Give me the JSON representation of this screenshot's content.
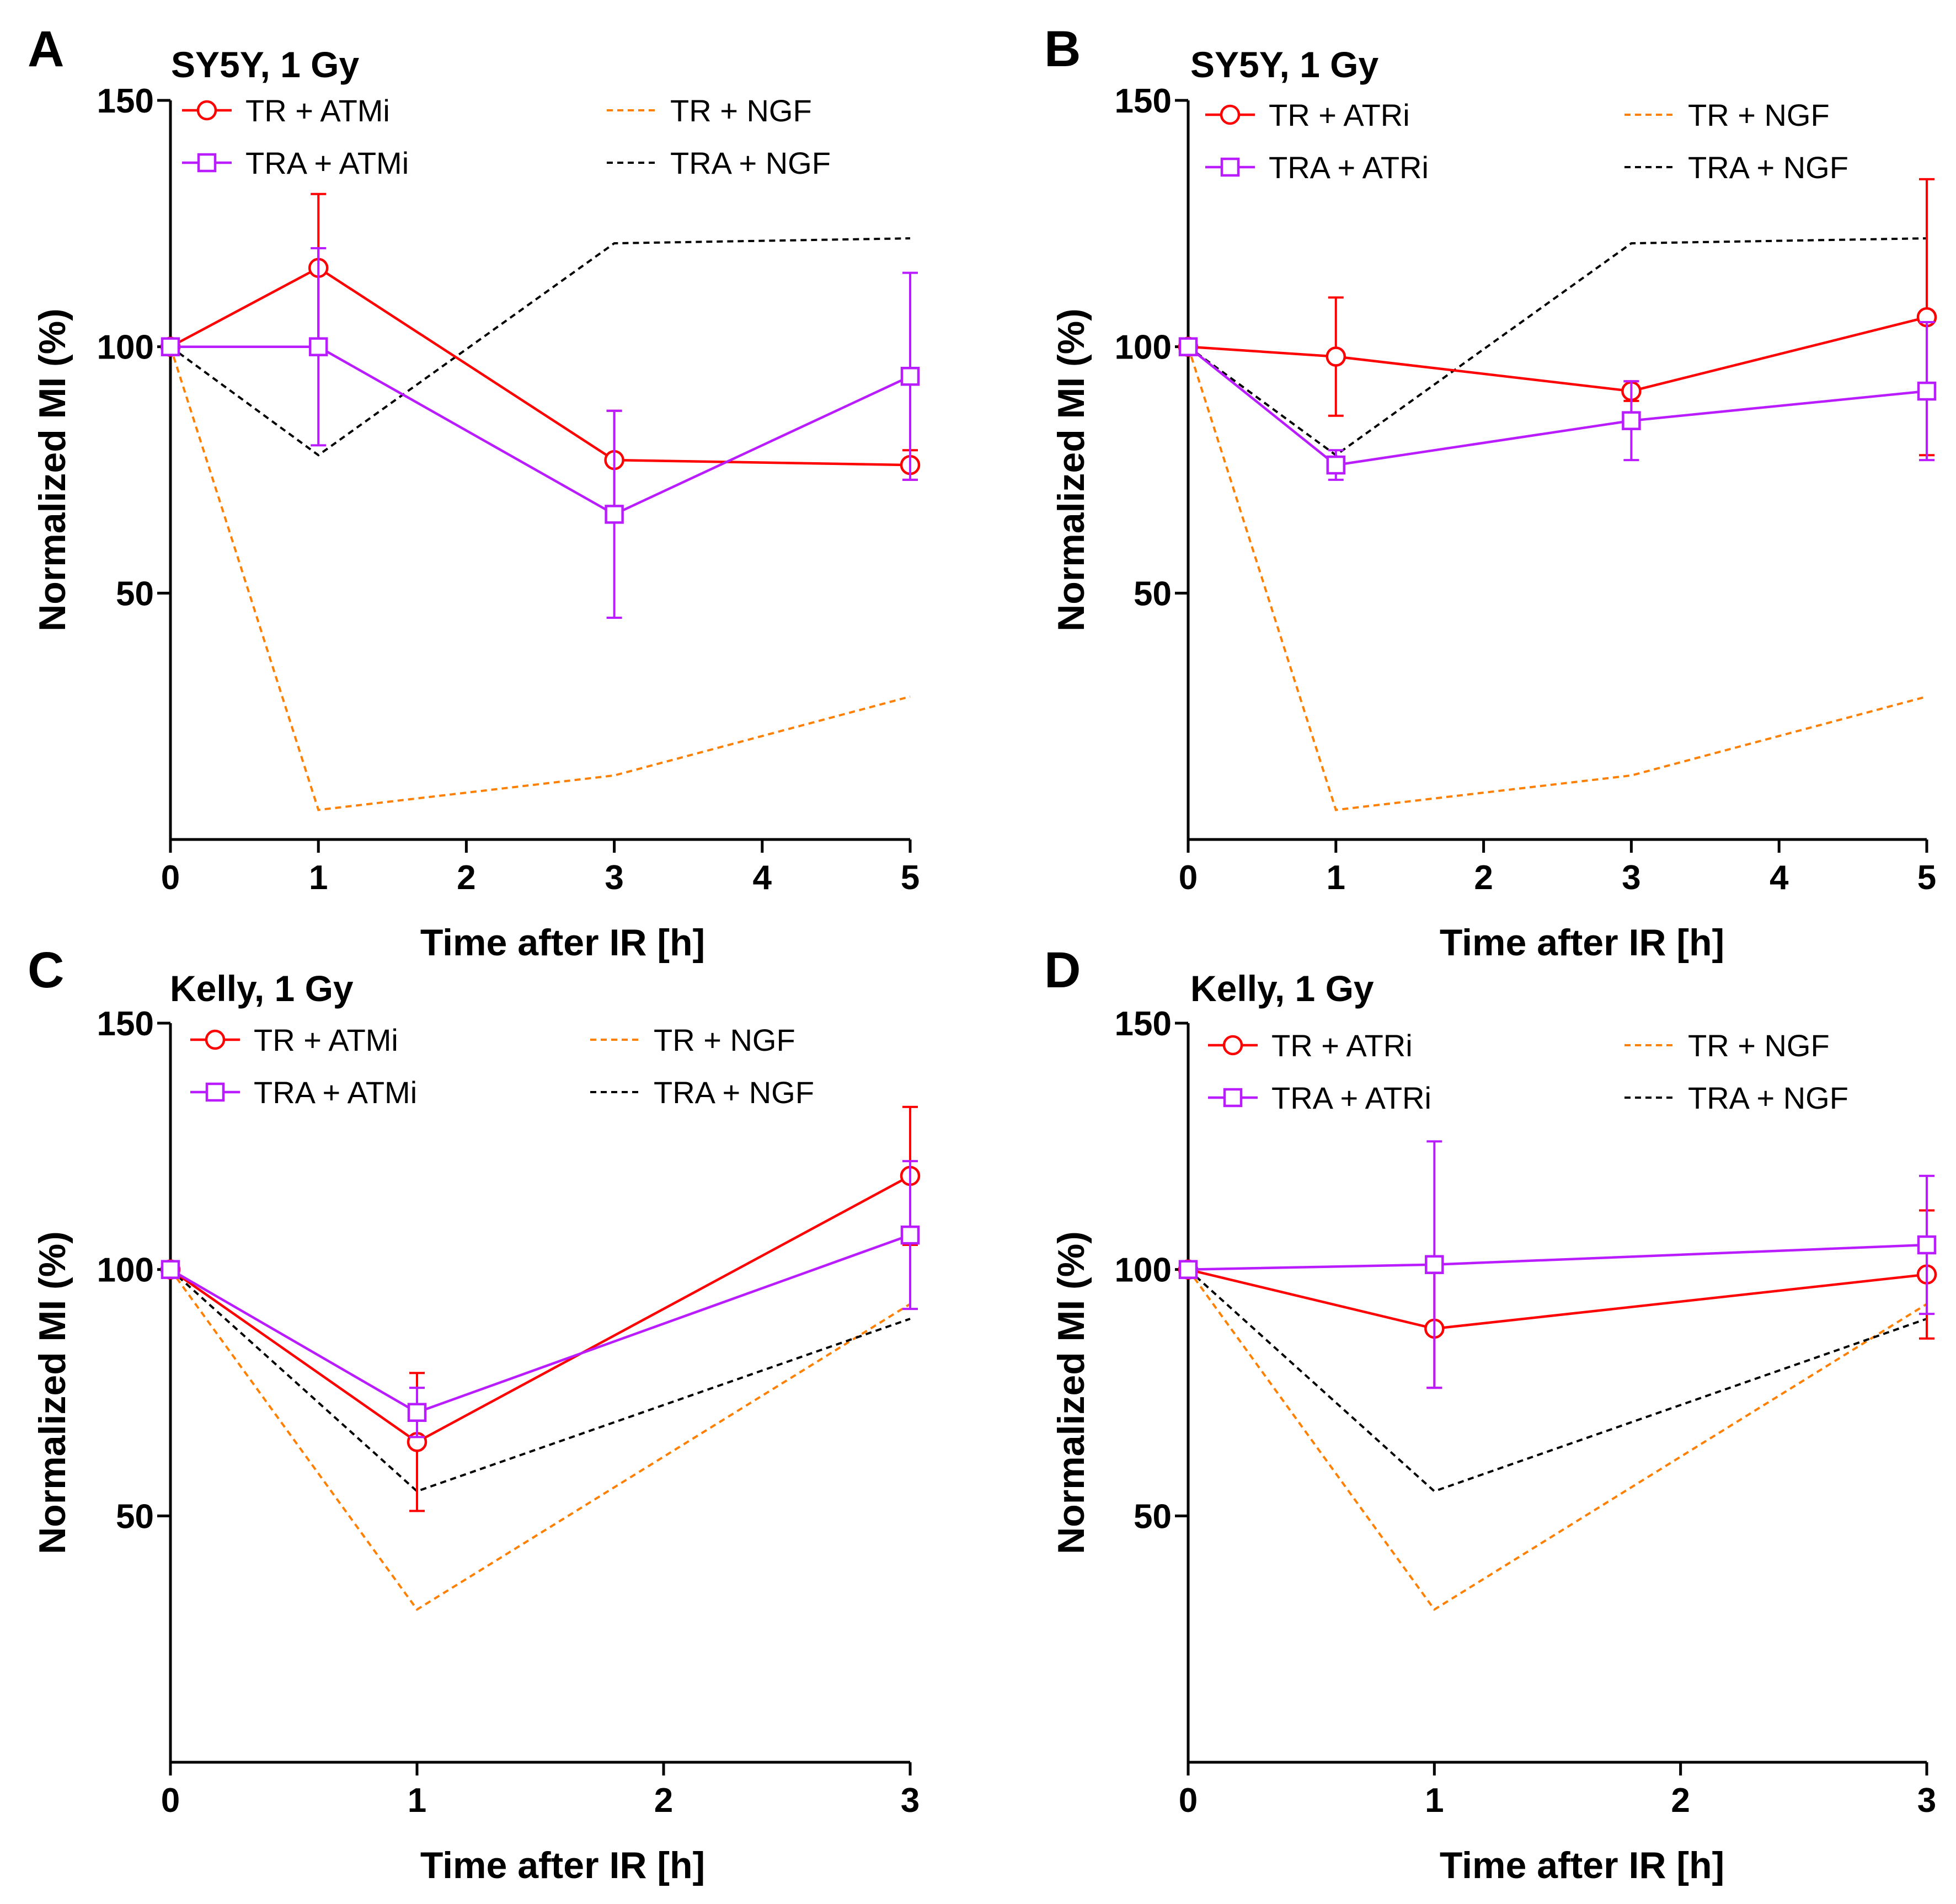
{
  "colors": {
    "tr_inhibitor": "#ff0000",
    "tra_inhibitor": "#b81cff",
    "tr_ngf": "#ff7f00",
    "tra_ngf": "#000000",
    "axis": "#000000"
  },
  "chart_data": [
    {
      "panel": "A",
      "title": "SY5Y, 1 Gy",
      "type": "line",
      "xlabel": "Time after IR [h]",
      "ylabel": "Normalized MI (%)",
      "xlim": [
        0,
        5
      ],
      "ylim": [
        0,
        150
      ],
      "xticks": [
        "0",
        "1",
        "2",
        "3",
        "4",
        "5"
      ],
      "yticks": [
        "50",
        "100",
        "150"
      ],
      "series": [
        {
          "name": "TR + ATMi",
          "style": "solid",
          "marker": "circle",
          "color": "#ff0000",
          "x": [
            0,
            1,
            3,
            5
          ],
          "y": [
            100,
            116,
            77,
            76
          ],
          "err": [
            0,
            15,
            10,
            3
          ]
        },
        {
          "name": "TRA + ATMi",
          "style": "solid",
          "marker": "square",
          "color": "#b81cff",
          "x": [
            0,
            1,
            3,
            5
          ],
          "y": [
            100,
            100,
            66,
            94
          ],
          "err": [
            0,
            20,
            21,
            21
          ]
        },
        {
          "name": "TR + NGF",
          "style": "dashed",
          "marker": "none",
          "color": "#ff7f00",
          "x": [
            0,
            1,
            3,
            5
          ],
          "y": [
            100,
            6,
            13,
            29
          ]
        },
        {
          "name": "TRA + NGF",
          "style": "dashed",
          "marker": "none",
          "color": "#000000",
          "x": [
            0,
            1,
            3,
            5
          ],
          "y": [
            100,
            78,
            121,
            122
          ]
        }
      ]
    },
    {
      "panel": "B",
      "title": "SY5Y, 1 Gy",
      "type": "line",
      "xlabel": "Time after IR [h]",
      "ylabel": "Normalized MI (%)",
      "xlim": [
        0,
        5
      ],
      "ylim": [
        0,
        150
      ],
      "xticks": [
        "0",
        "1",
        "2",
        "3",
        "4",
        "5"
      ],
      "yticks": [
        "50",
        "100",
        "150"
      ],
      "series": [
        {
          "name": "TR + ATRi",
          "style": "solid",
          "marker": "circle",
          "color": "#ff0000",
          "x": [
            0,
            1,
            3,
            5
          ],
          "y": [
            100,
            98,
            91,
            106
          ],
          "err": [
            0,
            12,
            2,
            28
          ]
        },
        {
          "name": "TRA + ATRi",
          "style": "solid",
          "marker": "square",
          "color": "#b81cff",
          "x": [
            0,
            1,
            3,
            5
          ],
          "y": [
            100,
            76,
            85,
            91
          ],
          "err": [
            0,
            3,
            8,
            14
          ]
        },
        {
          "name": "TR + NGF",
          "style": "dashed",
          "marker": "none",
          "color": "#ff7f00",
          "x": [
            0,
            1,
            3,
            5
          ],
          "y": [
            100,
            6,
            13,
            29
          ]
        },
        {
          "name": "TRA + NGF",
          "style": "dashed",
          "marker": "none",
          "color": "#000000",
          "x": [
            0,
            1,
            3,
            5
          ],
          "y": [
            100,
            78,
            121,
            122
          ]
        }
      ]
    },
    {
      "panel": "C",
      "title": "Kelly, 1 Gy",
      "type": "line",
      "xlabel": "Time after IR [h]",
      "ylabel": "Normalized MI (%)",
      "xlim": [
        0,
        3
      ],
      "ylim": [
        0,
        150
      ],
      "xticks": [
        "0",
        "1",
        "2",
        "3"
      ],
      "yticks": [
        "50",
        "100",
        "150"
      ],
      "series": [
        {
          "name": "TR + ATMi",
          "style": "solid",
          "marker": "circle",
          "color": "#ff0000",
          "x": [
            0,
            1,
            3
          ],
          "y": [
            100,
            65,
            119
          ],
          "err": [
            0,
            14,
            14
          ]
        },
        {
          "name": "TRA + ATMi",
          "style": "solid",
          "marker": "square",
          "color": "#b81cff",
          "x": [
            0,
            1,
            3
          ],
          "y": [
            100,
            71,
            107
          ],
          "err": [
            0,
            5,
            15
          ]
        },
        {
          "name": "TR + NGF",
          "style": "dashed",
          "marker": "none",
          "color": "#ff7f00",
          "x": [
            0,
            1,
            3
          ],
          "y": [
            100,
            31,
            93
          ]
        },
        {
          "name": "TRA + NGF",
          "style": "dashed",
          "marker": "none",
          "color": "#000000",
          "x": [
            0,
            1,
            3
          ],
          "y": [
            100,
            55,
            90
          ]
        }
      ]
    },
    {
      "panel": "D",
      "title": "Kelly, 1 Gy",
      "type": "line",
      "xlabel": "Time after IR [h]",
      "ylabel": "Normalized MI (%)",
      "xlim": [
        0,
        3
      ],
      "ylim": [
        0,
        150
      ],
      "xticks": [
        "0",
        "1",
        "2",
        "3"
      ],
      "yticks": [
        "50",
        "100",
        "150"
      ],
      "series": [
        {
          "name": "TR + ATRi",
          "style": "solid",
          "marker": "circle",
          "color": "#ff0000",
          "x": [
            0,
            1,
            3
          ],
          "y": [
            100,
            88,
            99
          ],
          "err": [
            0,
            12,
            13
          ]
        },
        {
          "name": "TRA + ATRi",
          "style": "solid",
          "marker": "square",
          "color": "#b81cff",
          "x": [
            0,
            1,
            3
          ],
          "y": [
            100,
            101,
            105
          ],
          "err": [
            0,
            25,
            14
          ]
        },
        {
          "name": "TR + NGF",
          "style": "dashed",
          "marker": "none",
          "color": "#ff7f00",
          "x": [
            0,
            1,
            3
          ],
          "y": [
            100,
            31,
            93
          ]
        },
        {
          "name": "TRA + NGF",
          "style": "dashed",
          "marker": "none",
          "color": "#000000",
          "x": [
            0,
            1,
            3
          ],
          "y": [
            100,
            55,
            90
          ]
        }
      ]
    }
  ]
}
